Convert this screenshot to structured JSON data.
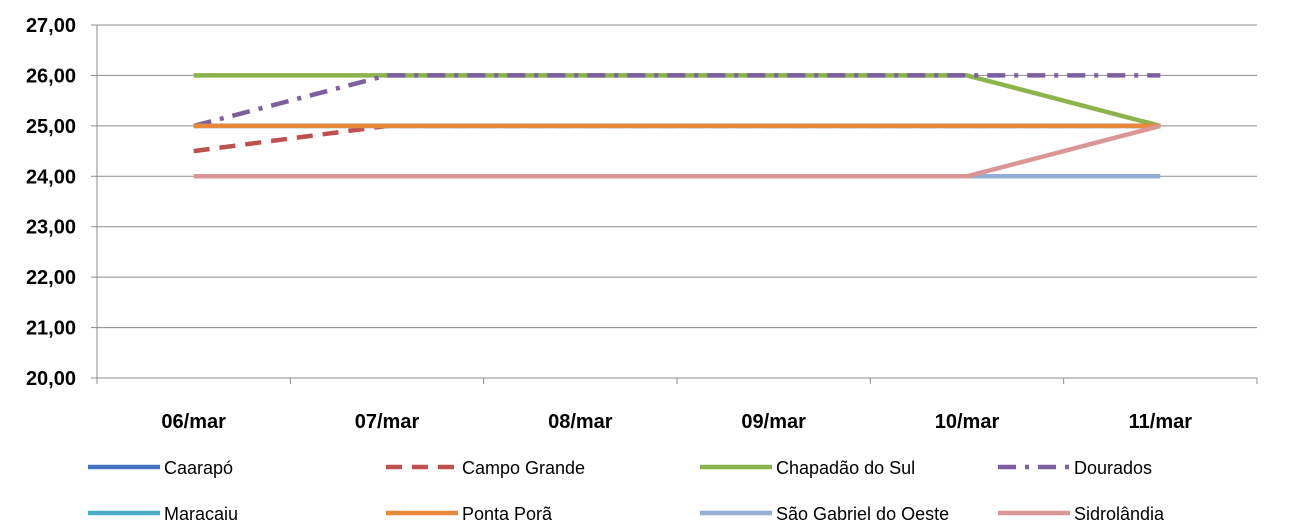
{
  "chart_data": {
    "type": "line",
    "title": "",
    "xlabel": "",
    "ylabel": "",
    "categories": [
      "06/mar",
      "07/mar",
      "08/mar",
      "09/mar",
      "10/mar",
      "11/mar"
    ],
    "ylim": [
      20,
      27
    ],
    "yticks": [
      "20,00",
      "21,00",
      "22,00",
      "23,00",
      "24,00",
      "25,00",
      "26,00",
      "27,00"
    ],
    "grid": "horizontal",
    "legend_position": "bottom",
    "series": [
      {
        "name": "Caarapó",
        "color": "#4472C4",
        "dash": "solid",
        "values": [
          25,
          25,
          25,
          25,
          25,
          25
        ]
      },
      {
        "name": "Campo Grande",
        "color": "#C0504D",
        "dash": "dash",
        "values": [
          24.5,
          25,
          25,
          25,
          25,
          25
        ]
      },
      {
        "name": "Chapadão do Sul",
        "color": "#8CB44C",
        "dash": "solid",
        "values": [
          26,
          26,
          26,
          26,
          26,
          25
        ]
      },
      {
        "name": "Dourados",
        "color": "#7B5FA0",
        "dash": "dashdot",
        "values": [
          25,
          26,
          26,
          26,
          26,
          26
        ]
      },
      {
        "name": "Maracaju",
        "color": "#4BACC6",
        "dash": "solid",
        "values": [
          25,
          25,
          25,
          25,
          25,
          25
        ]
      },
      {
        "name": "Ponta Porã",
        "color": "#E8883A",
        "dash": "solid",
        "values": [
          25,
          25,
          25,
          25,
          25,
          25
        ]
      },
      {
        "name": "São Gabriel do Oeste",
        "color": "#94AED5",
        "dash": "solid",
        "values": [
          24,
          24,
          24,
          24,
          24,
          24
        ]
      },
      {
        "name": "Sidrolândia",
        "color": "#D99694",
        "dash": "solid",
        "values": [
          24,
          24,
          24,
          24,
          24,
          25
        ]
      }
    ]
  }
}
